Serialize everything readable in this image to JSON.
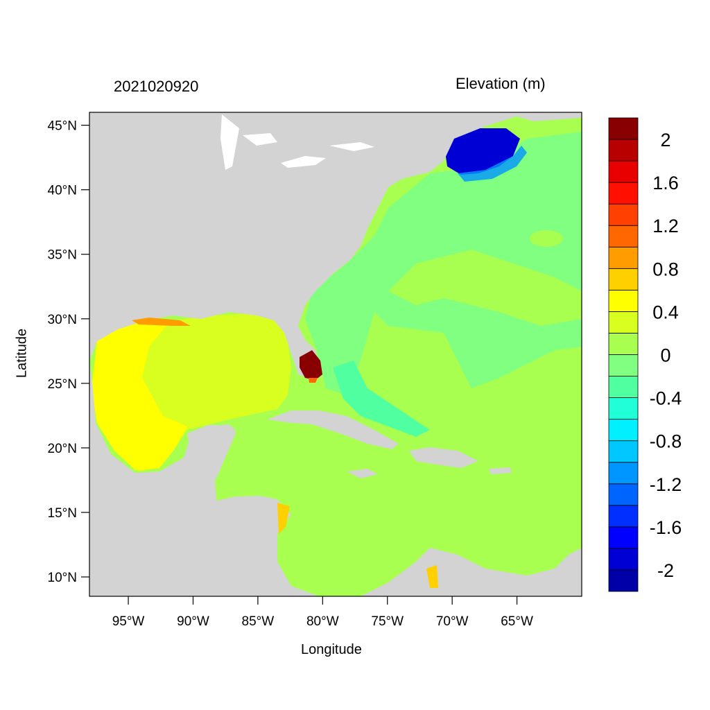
{
  "header": {
    "date_label": "2021020920",
    "variable_label": "Elevation (m)"
  },
  "axes": {
    "x_label": "Longitude",
    "y_label": "Latitude",
    "lon_range": [
      -98,
      -60
    ],
    "lat_range": [
      8.5,
      46
    ],
    "x_ticks": [
      {
        "value": -95,
        "label": "95°W"
      },
      {
        "value": -90,
        "label": "90°W"
      },
      {
        "value": -85,
        "label": "85°W"
      },
      {
        "value": -80,
        "label": "80°W"
      },
      {
        "value": -75,
        "label": "75°W"
      },
      {
        "value": -70,
        "label": "70°W"
      },
      {
        "value": -65,
        "label": "65°W"
      }
    ],
    "y_ticks": [
      {
        "value": 45,
        "label": "45°N"
      },
      {
        "value": 40,
        "label": "40°N"
      },
      {
        "value": 35,
        "label": "35°N"
      },
      {
        "value": 30,
        "label": "30°N"
      },
      {
        "value": 25,
        "label": "25°N"
      },
      {
        "value": 20,
        "label": "20°N"
      },
      {
        "value": 15,
        "label": "15°N"
      },
      {
        "value": 10,
        "label": "10°N"
      }
    ]
  },
  "colorbar": {
    "colors": [
      "#0000a8",
      "#0000d4",
      "#0000ff",
      "#0030ff",
      "#0064ff",
      "#0096ff",
      "#00c8ff",
      "#00f0ff",
      "#20ffd8",
      "#50ffa0",
      "#80ff80",
      "#a8ff50",
      "#d8ff20",
      "#ffff00",
      "#ffd000",
      "#ff9c00",
      "#ff6800",
      "#ff4000",
      "#ff1000",
      "#e80000",
      "#b80000",
      "#880000"
    ],
    "labels": [
      {
        "level": 2,
        "label": "2"
      },
      {
        "level": 1.6,
        "label": "1.6"
      },
      {
        "level": 1.2,
        "label": "1.2"
      },
      {
        "level": 0.8,
        "label": "0.8"
      },
      {
        "level": 0.4,
        "label": "0.4"
      },
      {
        "level": 0,
        "label": "0"
      },
      {
        "level": -0.4,
        "label": "-0.4"
      },
      {
        "level": -0.8,
        "label": "-0.8"
      },
      {
        "level": -1.2,
        "label": "-1.2"
      },
      {
        "level": -1.6,
        "label": "-1.6"
      },
      {
        "level": -2,
        "label": "-2"
      }
    ]
  },
  "map_colors": {
    "land": "#d3d3d3",
    "ocean_base": "#a8ff50",
    "gulf": "#d8ff20",
    "western_gulf": "#ffff00",
    "atlantic_shelf": "#80ff80",
    "gulf_of_maine": "#0000d4",
    "south_florida": "#880000",
    "bahamas": "#50ffa0"
  }
}
